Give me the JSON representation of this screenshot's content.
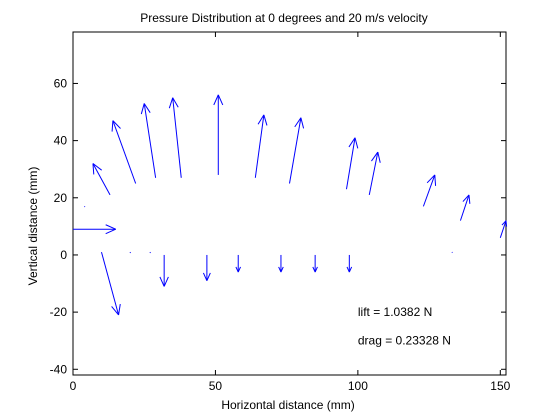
{
  "chart_data": {
    "type": "quiver",
    "title": "Pressure Distribution at 0 degrees and 20 m/s velocity",
    "xlabel": "Horizontal distance (mm)",
    "ylabel": "Vertical distance (mm)",
    "xlim": [
      0,
      152
    ],
    "ylim": [
      -42,
      78
    ],
    "xticks": [
      0,
      50,
      100,
      150
    ],
    "yticks": [
      -40,
      -20,
      0,
      20,
      40,
      60
    ],
    "grid": false,
    "arrow_color": "#0000ff",
    "annotations": [
      {
        "text": "lift = 1.0382 N",
        "x": 100,
        "y": -20
      },
      {
        "text": "drag = 0.23328 N",
        "x": 100,
        "y": -30
      }
    ],
    "vectors": [
      {
        "x": 0,
        "y": 9,
        "u": 15,
        "v": 0
      },
      {
        "x": 4,
        "y": 17,
        "u": 0.2,
        "v": -0.2
      },
      {
        "x": 13,
        "y": 21,
        "u": -6,
        "v": 11
      },
      {
        "x": 22,
        "y": 25,
        "u": -8,
        "v": 22
      },
      {
        "x": 29,
        "y": 27,
        "u": -4,
        "v": 26
      },
      {
        "x": 38,
        "y": 27,
        "u": -3,
        "v": 28
      },
      {
        "x": 51,
        "y": 28,
        "u": 0,
        "v": 28
      },
      {
        "x": 64,
        "y": 27,
        "u": 3,
        "v": 22
      },
      {
        "x": 76,
        "y": 25,
        "u": 4,
        "v": 23
      },
      {
        "x": 96,
        "y": 23,
        "u": 3,
        "v": 18
      },
      {
        "x": 104,
        "y": 21,
        "u": 3,
        "v": 15
      },
      {
        "x": 123,
        "y": 17,
        "u": 4,
        "v": 11
      },
      {
        "x": 136,
        "y": 12,
        "u": 3,
        "v": 9
      },
      {
        "x": 150,
        "y": 6,
        "u": 2,
        "v": 6
      },
      {
        "x": 10,
        "y": 1,
        "u": 6,
        "v": -22
      },
      {
        "x": 20,
        "y": 1,
        "u": 0.2,
        "v": -0.3
      },
      {
        "x": 27,
        "y": 1,
        "u": 0.2,
        "v": -0.3
      },
      {
        "x": 32,
        "y": 0,
        "u": 0,
        "v": -11
      },
      {
        "x": 47,
        "y": 0,
        "u": 0,
        "v": -9
      },
      {
        "x": 58,
        "y": 0,
        "u": 0,
        "v": -6
      },
      {
        "x": 73,
        "y": 0,
        "u": 0,
        "v": -6
      },
      {
        "x": 85,
        "y": 0,
        "u": 0,
        "v": -6
      },
      {
        "x": 97,
        "y": 0,
        "u": 0,
        "v": -6
      },
      {
        "x": 133,
        "y": 1,
        "u": 0.2,
        "v": -0.2
      }
    ]
  }
}
